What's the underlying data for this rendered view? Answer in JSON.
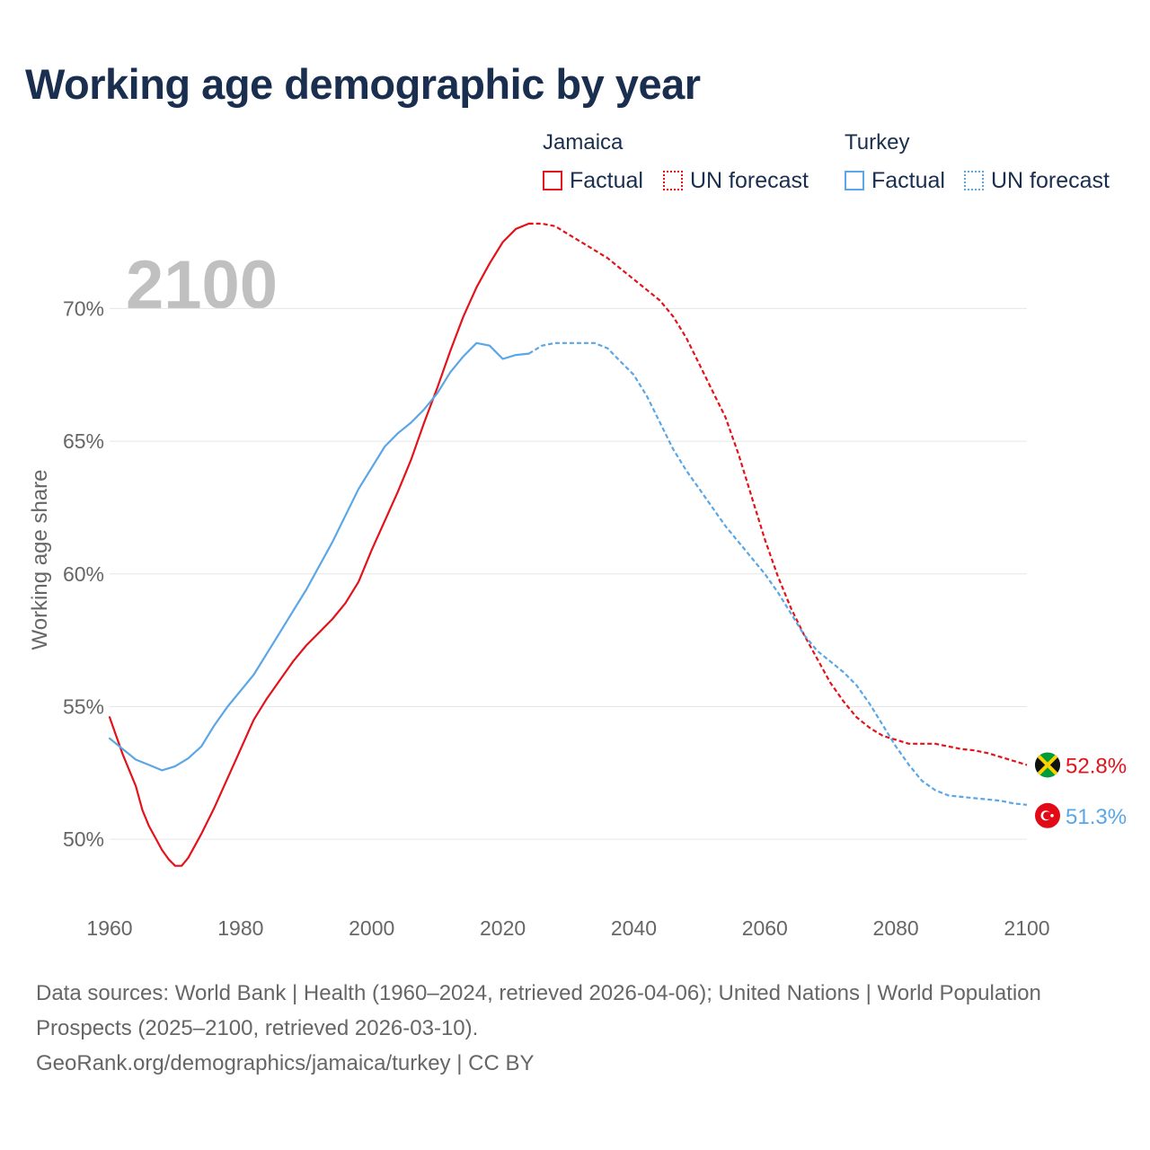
{
  "title": "Working age demographic by year",
  "legend": {
    "groups": [
      {
        "country": "Jamaica",
        "factual_label": "Factual",
        "forecast_label": "UN forecast",
        "color": "#e3131b"
      },
      {
        "country": "Turkey",
        "factual_label": "Factual",
        "forecast_label": "UN forecast",
        "color": "#5aa6e6"
      }
    ]
  },
  "year_display": "2100",
  "footer": {
    "line1": "Data sources: World Bank | Health (1960–2024, retrieved 2026-04-06); United Nations | World Population Prospects (2025–2100, retrieved 2026-03-10).",
    "line2": "GeoRank.org/demographics/jamaica/turkey | CC BY"
  },
  "chart_data": {
    "type": "line",
    "title": "Working age demographic by year",
    "xlabel": "",
    "ylabel": "Working age share",
    "xlim": [
      1960,
      2100
    ],
    "ylim": [
      47.5,
      73.5
    ],
    "x_ticks": [
      1960,
      1980,
      2000,
      2020,
      2040,
      2060,
      2080,
      2100
    ],
    "y_ticks": [
      50,
      55,
      60,
      65,
      70
    ],
    "y_tick_labels": [
      "50%",
      "55%",
      "60%",
      "65%",
      "70%"
    ],
    "grid": true,
    "factual_end_year": 2024,
    "series": [
      {
        "name": "Jamaica",
        "color": "#e3131b",
        "end_label": "52.8%",
        "flag": "jamaica-flag",
        "points": [
          [
            1960,
            54.6
          ],
          [
            1962,
            53.2
          ],
          [
            1964,
            52.0
          ],
          [
            1965,
            51.1
          ],
          [
            1966,
            50.5
          ],
          [
            1968,
            49.6
          ],
          [
            1969,
            49.25
          ],
          [
            1970,
            49.0
          ],
          [
            1971,
            49.0
          ],
          [
            1972,
            49.3
          ],
          [
            1974,
            50.2
          ],
          [
            1976,
            51.2
          ],
          [
            1978,
            52.3
          ],
          [
            1980,
            53.4
          ],
          [
            1982,
            54.5
          ],
          [
            1984,
            55.3
          ],
          [
            1986,
            56.0
          ],
          [
            1988,
            56.7
          ],
          [
            1990,
            57.3
          ],
          [
            1992,
            57.8
          ],
          [
            1994,
            58.3
          ],
          [
            1996,
            58.9
          ],
          [
            1998,
            59.7
          ],
          [
            2000,
            60.9
          ],
          [
            2002,
            62.0
          ],
          [
            2004,
            63.1
          ],
          [
            2006,
            64.3
          ],
          [
            2008,
            65.7
          ],
          [
            2010,
            67.0
          ],
          [
            2012,
            68.4
          ],
          [
            2014,
            69.7
          ],
          [
            2016,
            70.8
          ],
          [
            2018,
            71.7
          ],
          [
            2020,
            72.5
          ],
          [
            2022,
            73.0
          ],
          [
            2024,
            73.2
          ],
          [
            2026,
            73.2
          ],
          [
            2028,
            73.1
          ],
          [
            2030,
            72.8
          ],
          [
            2032,
            72.5
          ],
          [
            2034,
            72.2
          ],
          [
            2036,
            71.9
          ],
          [
            2038,
            71.5
          ],
          [
            2040,
            71.1
          ],
          [
            2042,
            70.7
          ],
          [
            2044,
            70.3
          ],
          [
            2046,
            69.7
          ],
          [
            2048,
            68.9
          ],
          [
            2050,
            67.9
          ],
          [
            2052,
            66.9
          ],
          [
            2054,
            65.9
          ],
          [
            2056,
            64.5
          ],
          [
            2058,
            62.9
          ],
          [
            2060,
            61.3
          ],
          [
            2062,
            59.9
          ],
          [
            2064,
            58.7
          ],
          [
            2066,
            57.7
          ],
          [
            2068,
            56.8
          ],
          [
            2070,
            55.9
          ],
          [
            2072,
            55.2
          ],
          [
            2074,
            54.6
          ],
          [
            2076,
            54.2
          ],
          [
            2078,
            53.9
          ],
          [
            2080,
            53.75
          ],
          [
            2082,
            53.6
          ],
          [
            2084,
            53.6
          ],
          [
            2086,
            53.6
          ],
          [
            2088,
            53.5
          ],
          [
            2090,
            53.4
          ],
          [
            2092,
            53.35
          ],
          [
            2094,
            53.25
          ],
          [
            2096,
            53.1
          ],
          [
            2098,
            52.95
          ],
          [
            2100,
            52.8
          ]
        ]
      },
      {
        "name": "Turkey",
        "color": "#5aa6e6",
        "end_label": "51.3%",
        "flag": "turkey-flag",
        "points": [
          [
            1960,
            53.8
          ],
          [
            1962,
            53.4
          ],
          [
            1964,
            53.0
          ],
          [
            1966,
            52.8
          ],
          [
            1968,
            52.6
          ],
          [
            1970,
            52.75
          ],
          [
            1972,
            53.05
          ],
          [
            1974,
            53.5
          ],
          [
            1976,
            54.3
          ],
          [
            1978,
            55.0
          ],
          [
            1980,
            55.6
          ],
          [
            1982,
            56.2
          ],
          [
            1984,
            57.0
          ],
          [
            1986,
            57.8
          ],
          [
            1988,
            58.6
          ],
          [
            1990,
            59.4
          ],
          [
            1992,
            60.3
          ],
          [
            1994,
            61.2
          ],
          [
            1996,
            62.2
          ],
          [
            1998,
            63.2
          ],
          [
            2000,
            64.0
          ],
          [
            2002,
            64.8
          ],
          [
            2004,
            65.3
          ],
          [
            2006,
            65.7
          ],
          [
            2008,
            66.2
          ],
          [
            2010,
            66.8
          ],
          [
            2012,
            67.6
          ],
          [
            2014,
            68.2
          ],
          [
            2016,
            68.7
          ],
          [
            2018,
            68.6
          ],
          [
            2020,
            68.1
          ],
          [
            2022,
            68.25
          ],
          [
            2024,
            68.3
          ],
          [
            2026,
            68.6
          ],
          [
            2028,
            68.7
          ],
          [
            2030,
            68.7
          ],
          [
            2034,
            68.7
          ],
          [
            2036,
            68.5
          ],
          [
            2038,
            68.0
          ],
          [
            2040,
            67.5
          ],
          [
            2042,
            66.7
          ],
          [
            2044,
            65.7
          ],
          [
            2046,
            64.7
          ],
          [
            2048,
            63.9
          ],
          [
            2050,
            63.2
          ],
          [
            2052,
            62.5
          ],
          [
            2054,
            61.8
          ],
          [
            2056,
            61.2
          ],
          [
            2058,
            60.6
          ],
          [
            2060,
            60.0
          ],
          [
            2062,
            59.3
          ],
          [
            2064,
            58.5
          ],
          [
            2066,
            57.7
          ],
          [
            2068,
            57.1
          ],
          [
            2070,
            56.7
          ],
          [
            2072,
            56.3
          ],
          [
            2074,
            55.8
          ],
          [
            2076,
            55.1
          ],
          [
            2078,
            54.3
          ],
          [
            2080,
            53.5
          ],
          [
            2082,
            52.8
          ],
          [
            2084,
            52.2
          ],
          [
            2086,
            51.85
          ],
          [
            2088,
            51.65
          ],
          [
            2090,
            51.6
          ],
          [
            2092,
            51.55
          ],
          [
            2094,
            51.5
          ],
          [
            2096,
            51.45
          ],
          [
            2098,
            51.35
          ],
          [
            2100,
            51.3
          ]
        ]
      }
    ]
  }
}
